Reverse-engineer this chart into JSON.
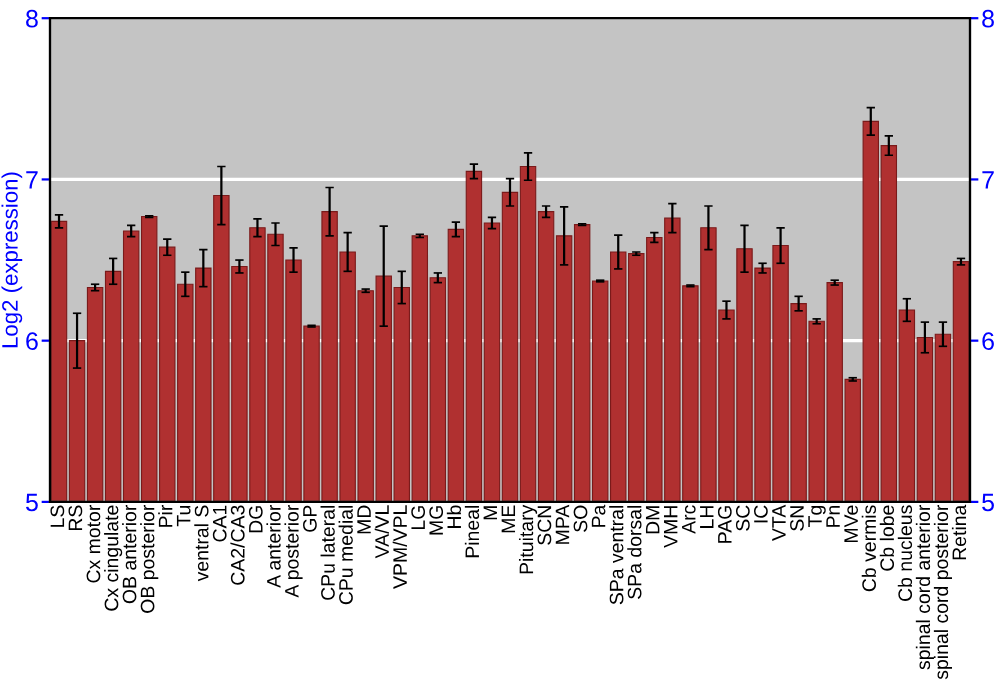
{
  "chart_data": {
    "type": "bar",
    "ylabel": "Log2 (expression)",
    "categories": [
      "LS",
      "RS",
      "Cx motor",
      "Cx cingulate",
      "OB anterior",
      "OB posterior",
      "Pir",
      "Tu",
      "ventral S",
      "CA1",
      "CA2/CA3",
      "DG",
      "A anterior",
      "A posterior",
      "GP",
      "CPu lateral",
      "CPu medial",
      "MD",
      "VA/VL",
      "VPM/VPL",
      "LG",
      "MG",
      "Hb",
      "Pineal",
      "M",
      "ME",
      "Pituitary",
      "SCN",
      "MPA",
      "SO",
      "Pa",
      "SPa ventral",
      "SPa dorsal",
      "DM",
      "VMH",
      "Arc",
      "LH",
      "PAG",
      "SC",
      "IC",
      "VTA",
      "SN",
      "Tg",
      "Pn",
      "MVe",
      "Cb vermis",
      "Cb lobe",
      "Cb nucleus",
      "spinal cord anterior",
      "spinal cord posterior",
      "Retina"
    ],
    "values": [
      6.74,
      6.0,
      6.33,
      6.43,
      6.68,
      6.77,
      6.58,
      6.35,
      6.45,
      6.9,
      6.46,
      6.7,
      6.66,
      6.5,
      6.09,
      6.8,
      6.55,
      6.31,
      6.4,
      6.33,
      6.65,
      6.39,
      6.69,
      7.05,
      6.73,
      6.92,
      7.08,
      6.8,
      6.65,
      6.72,
      6.37,
      6.55,
      6.54,
      6.64,
      6.76,
      6.34,
      6.7,
      6.19,
      6.57,
      6.45,
      6.59,
      6.23,
      6.12,
      6.36,
      5.76,
      7.36,
      7.21,
      6.19,
      6.02,
      6.04,
      6.49
    ],
    "errors": [
      0.04,
      0.17,
      0.02,
      0.08,
      0.035,
      0.005,
      0.05,
      0.075,
      0.115,
      0.18,
      0.04,
      0.055,
      0.07,
      0.075,
      0.005,
      0.15,
      0.12,
      0.01,
      0.31,
      0.1,
      0.01,
      0.03,
      0.045,
      0.045,
      0.035,
      0.085,
      0.085,
      0.035,
      0.18,
      0.005,
      0.005,
      0.105,
      0.01,
      0.03,
      0.09,
      0.005,
      0.135,
      0.055,
      0.145,
      0.03,
      0.11,
      0.045,
      0.015,
      0.015,
      0.01,
      0.085,
      0.06,
      0.07,
      0.095,
      0.075,
      0.02
    ],
    "color": "#b03030",
    "ylim": [
      5,
      8
    ],
    "yticks": [
      5,
      6,
      7,
      8
    ],
    "y2lim": [
      5,
      8
    ],
    "y2ticks": [
      5,
      6,
      7,
      8
    ],
    "grid": "y"
  }
}
